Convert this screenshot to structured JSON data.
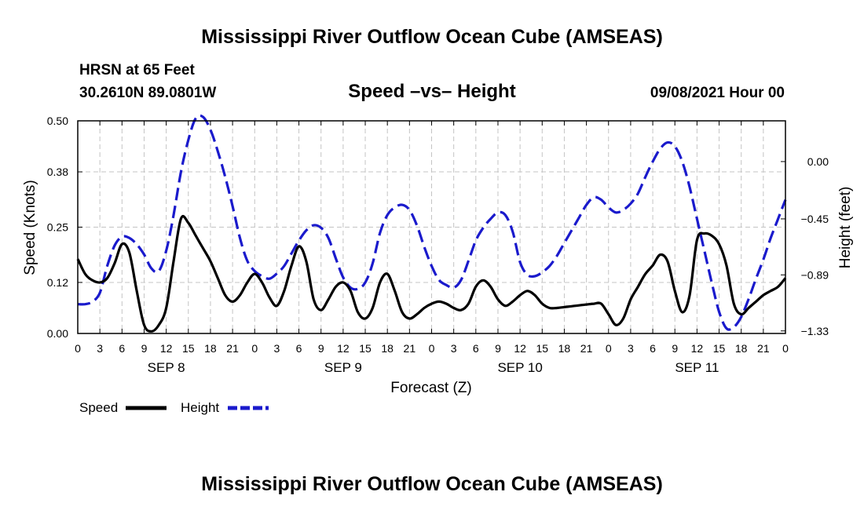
{
  "header": {
    "title": "Mississippi River Outflow Ocean Cube (AMSEAS)",
    "station": "HRSN at 65 Feet",
    "location": "30.2610N  89.0801W",
    "subtitle": "Speed –vs– Height",
    "datetime": "09/08/2021 Hour 00",
    "footer_title": "Mississippi River Outflow Ocean Cube (AMSEAS)"
  },
  "chart_data": {
    "type": "line",
    "title": "Speed –vs– Height",
    "xlabel": "Forecast (Z)",
    "ylabel": "Speed (Knots)",
    "y2label": "Height (feet)",
    "xlim": [
      0,
      96
    ],
    "ylim": [
      0,
      0.5
    ],
    "y2lim": [
      -1.35,
      0.32
    ],
    "grid": true,
    "x_tick_hours": [
      0,
      3,
      6,
      9,
      12,
      15,
      18,
      21,
      24,
      27,
      30,
      33,
      36,
      39,
      42,
      45,
      48,
      51,
      54,
      57,
      60,
      63,
      66,
      69,
      72,
      75,
      78,
      81,
      84,
      87,
      90,
      93,
      96
    ],
    "x_tick_labels": [
      "0",
      "3",
      "6",
      "9",
      "12",
      "15",
      "18",
      "21",
      "0",
      "3",
      "6",
      "9",
      "12",
      "15",
      "18",
      "21",
      "0",
      "3",
      "6",
      "9",
      "12",
      "15",
      "18",
      "21",
      "0",
      "3",
      "6",
      "9",
      "12",
      "15",
      "18",
      "21",
      "0"
    ],
    "day_labels": [
      {
        "label": "SEP 8",
        "hour": 12
      },
      {
        "label": "SEP 9",
        "hour": 36
      },
      {
        "label": "SEP 10",
        "hour": 60
      },
      {
        "label": "SEP 11",
        "hour": 84
      }
    ],
    "y_ticks": [
      0.0,
      0.12,
      0.25,
      0.38,
      0.5
    ],
    "y_tick_labels": [
      "0.00",
      "0.12",
      "0.25",
      "0.38",
      "0.50"
    ],
    "y2_ticks": [
      0.0,
      -0.45,
      -0.89,
      -1.33
    ],
    "y2_tick_labels": [
      "0.00",
      "−0.45",
      "−0.89",
      "−1.33"
    ],
    "series": [
      {
        "name": "Speed",
        "axis": "left",
        "color": "#000000",
        "style": "solid",
        "x": [
          0,
          1,
          2,
          3,
          4,
          5,
          6,
          7,
          8,
          9,
          10,
          11,
          12,
          13,
          14,
          15,
          16,
          17,
          18,
          19,
          20,
          21,
          22,
          23,
          24,
          25,
          26,
          27,
          28,
          29,
          30,
          31,
          32,
          33,
          34,
          35,
          36,
          37,
          38,
          39,
          40,
          41,
          42,
          43,
          44,
          45,
          46,
          47,
          48,
          49,
          50,
          51,
          52,
          53,
          54,
          55,
          56,
          57,
          58,
          59,
          60,
          61,
          62,
          63,
          64,
          65,
          66,
          67,
          68,
          69,
          70,
          71,
          72,
          73,
          74,
          75,
          76,
          77,
          78,
          79,
          80,
          81,
          82,
          83,
          84,
          85,
          86,
          87,
          88,
          89,
          90,
          91,
          92,
          93,
          94,
          95,
          96
        ],
        "values": [
          0.175,
          0.14,
          0.125,
          0.12,
          0.13,
          0.165,
          0.21,
          0.19,
          0.1,
          0.02,
          0.005,
          0.02,
          0.06,
          0.17,
          0.27,
          0.26,
          0.23,
          0.2,
          0.17,
          0.13,
          0.09,
          0.075,
          0.09,
          0.12,
          0.14,
          0.12,
          0.085,
          0.065,
          0.1,
          0.16,
          0.205,
          0.17,
          0.08,
          0.055,
          0.08,
          0.11,
          0.12,
          0.1,
          0.05,
          0.035,
          0.06,
          0.12,
          0.14,
          0.1,
          0.05,
          0.035,
          0.045,
          0.06,
          0.07,
          0.075,
          0.07,
          0.06,
          0.055,
          0.07,
          0.11,
          0.125,
          0.11,
          0.08,
          0.065,
          0.075,
          0.09,
          0.1,
          0.09,
          0.07,
          0.06,
          0.06,
          0.062,
          0.064,
          0.066,
          0.068,
          0.07,
          0.07,
          0.045,
          0.02,
          0.035,
          0.08,
          0.11,
          0.14,
          0.16,
          0.185,
          0.17,
          0.1,
          0.05,
          0.09,
          0.22,
          0.235,
          0.23,
          0.21,
          0.16,
          0.07,
          0.045,
          0.06,
          0.075,
          0.09,
          0.1,
          0.11,
          0.13
        ]
      },
      {
        "name": "Height",
        "axis": "right",
        "color": "#1a1acc",
        "style": "dashed",
        "x": [
          0,
          1,
          2,
          3,
          4,
          5,
          6,
          7,
          8,
          9,
          10,
          11,
          12,
          13,
          14,
          15,
          16,
          17,
          18,
          19,
          20,
          21,
          22,
          23,
          24,
          25,
          26,
          27,
          28,
          29,
          30,
          31,
          32,
          33,
          34,
          35,
          36,
          37,
          38,
          39,
          40,
          41,
          42,
          43,
          44,
          45,
          46,
          47,
          48,
          49,
          50,
          51,
          52,
          53,
          54,
          55,
          56,
          57,
          58,
          59,
          60,
          61,
          62,
          63,
          64,
          65,
          66,
          67,
          68,
          69,
          70,
          71,
          72,
          73,
          74,
          75,
          76,
          77,
          78,
          79,
          80,
          81,
          82,
          83,
          84,
          85,
          86,
          87,
          88,
          89,
          90,
          91,
          92,
          93,
          94,
          95,
          96
        ],
        "values": [
          -1.12,
          -1.12,
          -1.1,
          -1.03,
          -0.82,
          -0.66,
          -0.59,
          -0.6,
          -0.65,
          -0.73,
          -0.84,
          -0.86,
          -0.7,
          -0.42,
          -0.08,
          0.17,
          0.34,
          0.35,
          0.25,
          0.08,
          -0.12,
          -0.35,
          -0.6,
          -0.78,
          -0.86,
          -0.9,
          -0.92,
          -0.88,
          -0.82,
          -0.72,
          -0.62,
          -0.54,
          -0.5,
          -0.52,
          -0.6,
          -0.76,
          -0.91,
          -0.99,
          -1.0,
          -0.95,
          -0.8,
          -0.56,
          -0.42,
          -0.36,
          -0.34,
          -0.38,
          -0.5,
          -0.67,
          -0.82,
          -0.93,
          -0.97,
          -0.99,
          -0.93,
          -0.78,
          -0.62,
          -0.52,
          -0.45,
          -0.4,
          -0.42,
          -0.55,
          -0.79,
          -0.89,
          -0.9,
          -0.87,
          -0.82,
          -0.74,
          -0.64,
          -0.54,
          -0.44,
          -0.34,
          -0.28,
          -0.3,
          -0.36,
          -0.4,
          -0.38,
          -0.33,
          -0.25,
          -0.12,
          0.0,
          0.1,
          0.15,
          0.12,
          0.0,
          -0.2,
          -0.45,
          -0.7,
          -0.95,
          -1.18,
          -1.31,
          -1.3,
          -1.22,
          -1.08,
          -0.92,
          -0.77,
          -0.6,
          -0.45,
          -0.3
        ]
      }
    ],
    "legend": {
      "placement": "bottom-left",
      "entries": [
        {
          "label": "Speed"
        },
        {
          "label": "Height"
        }
      ]
    }
  }
}
